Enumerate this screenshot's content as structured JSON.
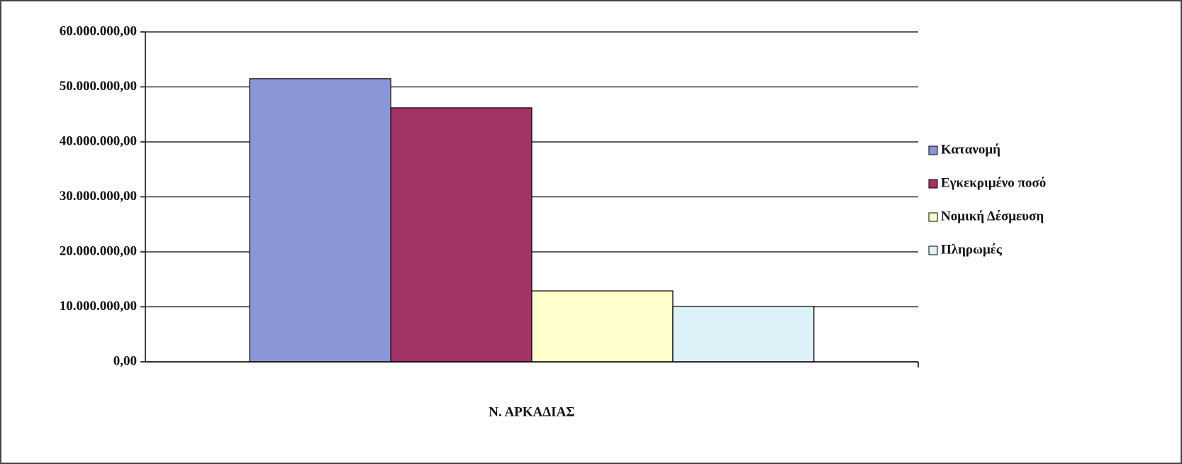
{
  "chart_data": {
    "type": "bar",
    "categories": [
      "Ν. ΑΡΚΑΔΙΑΣ"
    ],
    "series": [
      {
        "name": "Κατανομή",
        "color": "#8b96d8",
        "values": [
          51500000
        ]
      },
      {
        "name": "Εγκεκριμένο ποσό",
        "color": "#a33366",
        "values": [
          46200000
        ]
      },
      {
        "name": "Νομική Δέσμευση",
        "color": "#ffffcc",
        "values": [
          12900000
        ]
      },
      {
        "name": "Πληρωμές",
        "color": "#ddf1f9",
        "values": [
          10100000
        ]
      }
    ],
    "ylim": [
      0,
      60000000
    ],
    "yticks": [
      {
        "value": 0,
        "label": "0,00"
      },
      {
        "value": 10000000,
        "label": "10.000.000,00"
      },
      {
        "value": 20000000,
        "label": "20.000.000,00"
      },
      {
        "value": 30000000,
        "label": "30.000.000,00"
      },
      {
        "value": 40000000,
        "label": "40.000.000,00"
      },
      {
        "value": 50000000,
        "label": "50.000.000,00"
      },
      {
        "value": 60000000,
        "label": "60.000.000,00"
      }
    ],
    "grid": true,
    "legend": "right"
  }
}
